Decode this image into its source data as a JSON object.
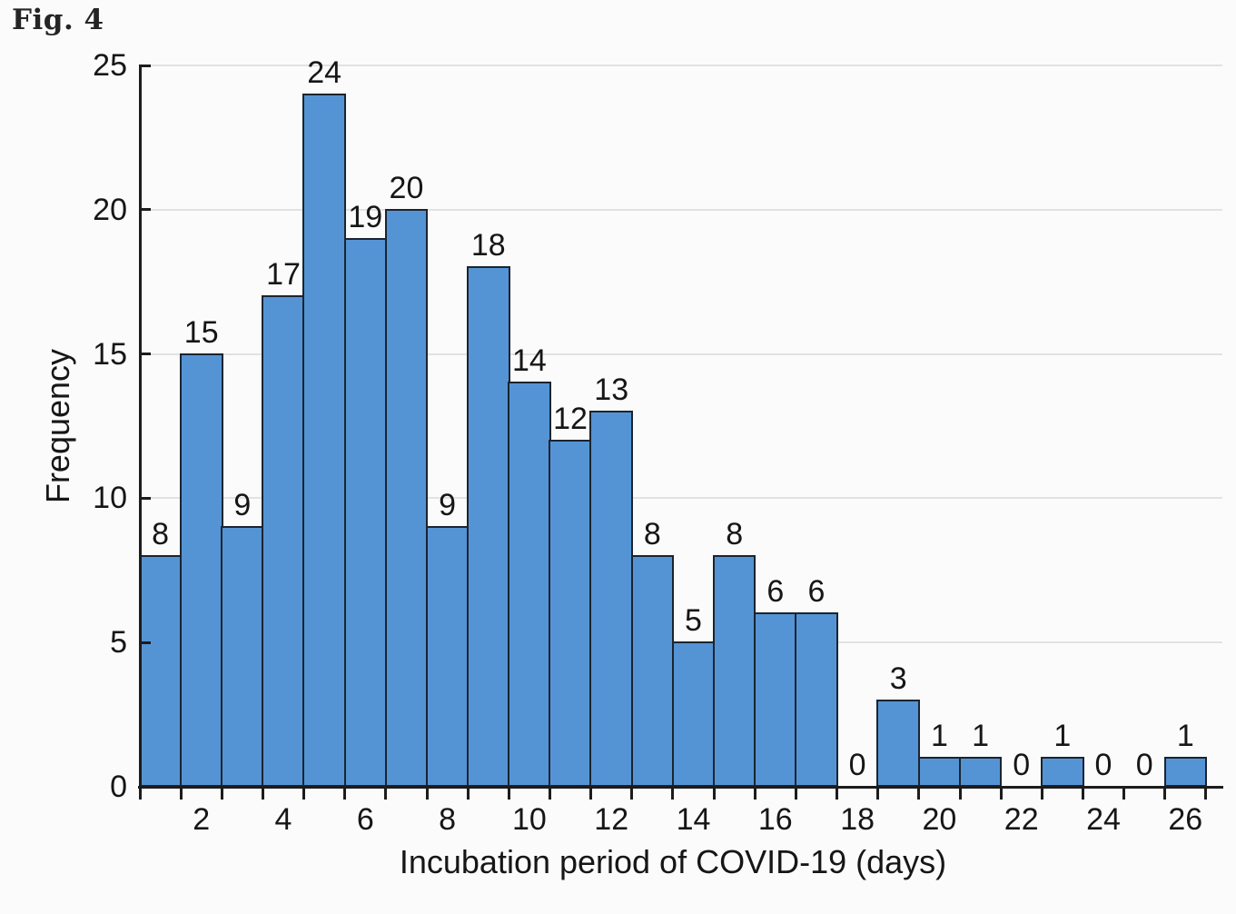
{
  "figure": {
    "label": "Fig. 4"
  },
  "chart_data": {
    "type": "bar",
    "subtype": "histogram",
    "title": "",
    "xlabel": "Incubation period of COVID-19 (days)",
    "ylabel": "Frequency",
    "categories": [
      1,
      2,
      3,
      4,
      5,
      6,
      7,
      8,
      9,
      10,
      11,
      12,
      13,
      14,
      15,
      16,
      17,
      18,
      19,
      20,
      21,
      22,
      23,
      24,
      25,
      26
    ],
    "values": [
      8,
      15,
      9,
      17,
      24,
      19,
      20,
      9,
      18,
      14,
      12,
      13,
      8,
      5,
      8,
      6,
      6,
      0,
      3,
      1,
      1,
      0,
      1,
      0,
      0,
      1
    ],
    "bar_value_labels": [
      "8",
      "15",
      "9",
      "17",
      "24",
      "19",
      "20",
      "9",
      "18",
      "14",
      "12",
      "13",
      "8",
      "5",
      "8",
      "6",
      "6",
      "0",
      "3",
      "1",
      "1",
      "0",
      "1",
      "0",
      "0",
      "1"
    ],
    "bin_width": 1,
    "xlim": [
      0.5,
      26.9
    ],
    "ylim": [
      0,
      25
    ],
    "x_tick_positions": [
      2,
      4,
      6,
      8,
      10,
      12,
      14,
      16,
      18,
      20,
      22,
      24,
      26
    ],
    "x_tick_labels": [
      "2",
      "4",
      "6",
      "8",
      "10",
      "12",
      "14",
      "16",
      "18",
      "20",
      "22",
      "24",
      "26"
    ],
    "y_ticks": [
      0,
      5,
      10,
      15,
      20,
      25
    ],
    "y_tick_labels": [
      "0",
      "5",
      "10",
      "15",
      "20",
      "25"
    ],
    "grid": "horizontal gridlines at y ticks",
    "legend": "none",
    "colors": {
      "bar_fill": "#5594d4",
      "bar_edge": "#1a2430",
      "axis": "#1c1c1c",
      "gridline": "#e2e2e2",
      "text": "#161616",
      "background": "#fbfbfb"
    }
  }
}
